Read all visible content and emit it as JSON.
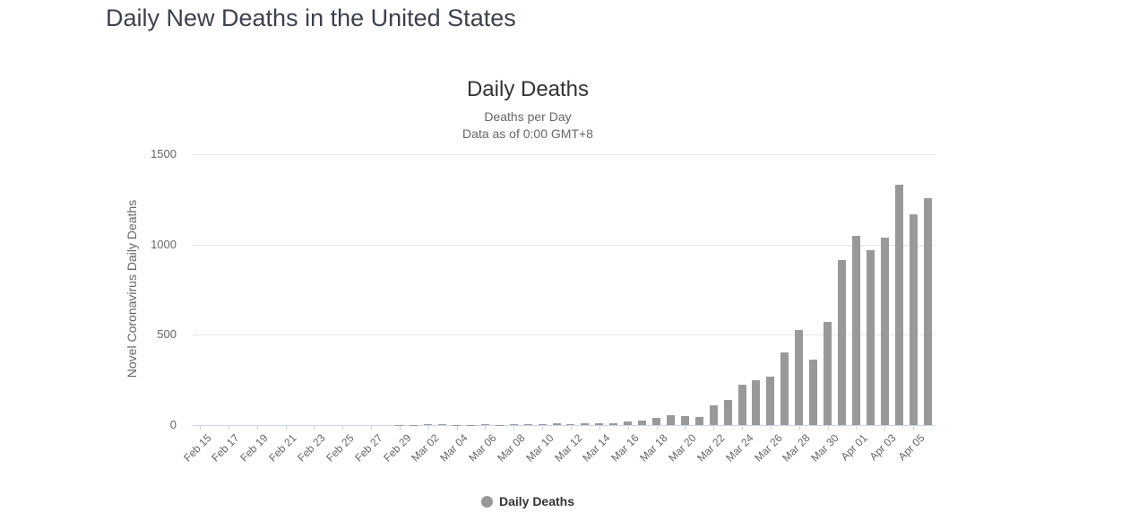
{
  "page": {
    "title": "Daily New Deaths in the United States"
  },
  "chart_data": {
    "type": "bar",
    "title": "Daily Deaths",
    "subtitle_lines": [
      "Deaths per Day",
      "Data as of 0:00 GMT+8"
    ],
    "xlabel": "",
    "ylabel": "Novel Coronavirus Daily Deaths",
    "ylim": [
      0,
      1500
    ],
    "yticks": [
      0,
      500,
      1000,
      1500
    ],
    "grid": true,
    "legend": [
      "Daily Deaths"
    ],
    "legend_position": "bottom",
    "x_labels_every": 2,
    "bar_color": "#999999",
    "categories": [
      "Feb 15",
      "Feb 16",
      "Feb 17",
      "Feb 18",
      "Feb 19",
      "Feb 20",
      "Feb 21",
      "Feb 22",
      "Feb 23",
      "Feb 24",
      "Feb 25",
      "Feb 26",
      "Feb 27",
      "Feb 28",
      "Feb 29",
      "Mar 01",
      "Mar 02",
      "Mar 03",
      "Mar 04",
      "Mar 05",
      "Mar 06",
      "Mar 07",
      "Mar 08",
      "Mar 09",
      "Mar 10",
      "Mar 11",
      "Mar 12",
      "Mar 13",
      "Mar 14",
      "Mar 15",
      "Mar 16",
      "Mar 17",
      "Mar 18",
      "Mar 19",
      "Mar 20",
      "Mar 21",
      "Mar 22",
      "Mar 23",
      "Mar 24",
      "Mar 25",
      "Mar 26",
      "Mar 27",
      "Mar 28",
      "Mar 29",
      "Mar 30",
      "Mar 31",
      "Apr 01",
      "Apr 02",
      "Apr 03",
      "Apr 04",
      "Apr 05",
      "Apr 06"
    ],
    "values": [
      0,
      0,
      0,
      0,
      0,
      0,
      0,
      0,
      0,
      0,
      0,
      0,
      0,
      0,
      1,
      1,
      5,
      3,
      2,
      1,
      3,
      2,
      3,
      4,
      4,
      8,
      3,
      8,
      10,
      11,
      18,
      23,
      41,
      57,
      49,
      46,
      111,
      140,
      225,
      247,
      268,
      400,
      525,
      363,
      573,
      912,
      1049,
      968,
      1036,
      1331,
      1165,
      1255
    ]
  },
  "colors": {
    "bar": "#999999",
    "grid": "#e6e6e6",
    "axis_line": "#ccd6eb",
    "axis_label": "#666666",
    "title": "#333333"
  }
}
